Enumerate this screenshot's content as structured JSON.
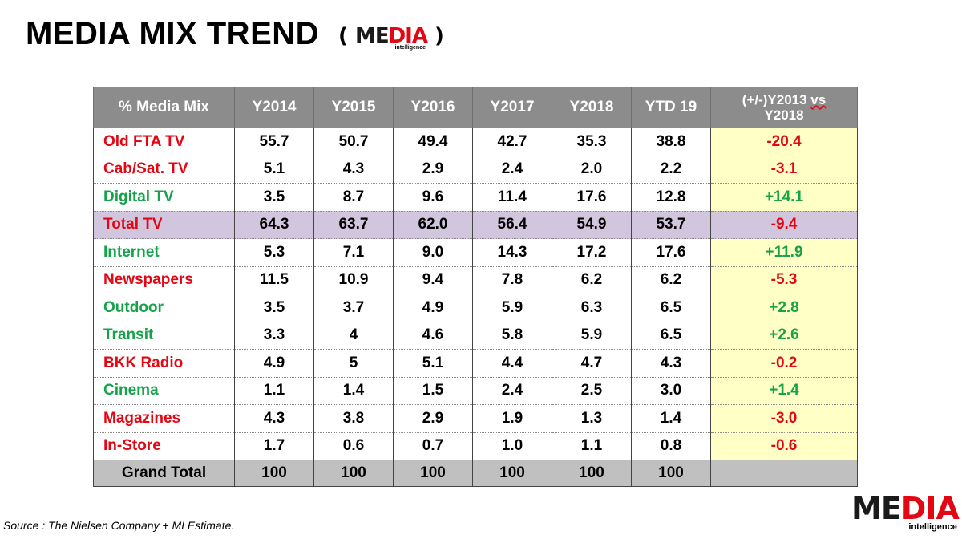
{
  "title": "MEDIA MIX TREND",
  "logo": {
    "open_paren": "(",
    "close_paren": ")",
    "word_part1": "ME",
    "word_part2": "DIA",
    "sub": "intelligence"
  },
  "table": {
    "headers": [
      "% Media Mix",
      "Y2014",
      "Y2015",
      "Y2016",
      "Y2017",
      "Y2018",
      "YTD 19"
    ],
    "change_header_line1": "(+/-)Y2013 ",
    "change_header_vs": "vs",
    "change_header_line2": "Y2018",
    "rows": [
      {
        "media": "Old FTA TV",
        "values": [
          "55.7",
          "50.7",
          "49.4",
          "42.7",
          "35.3",
          "38.8"
        ],
        "change": "-20.4"
      },
      {
        "media": "Cab/Sat. TV",
        "values": [
          "5.1",
          "4.3",
          "2.9",
          "2.4",
          "2.0",
          "2.2"
        ],
        "change": "-3.1"
      },
      {
        "media": "Digital TV",
        "values": [
          "3.5",
          "8.7",
          "9.6",
          "11.4",
          "17.6",
          "12.8"
        ],
        "change": "+14.1"
      },
      {
        "media": "Total TV",
        "values": [
          "64.3",
          "63.7",
          "62.0",
          "56.4",
          "54.9",
          "53.7"
        ],
        "change": "-9.4"
      },
      {
        "media": "Internet",
        "values": [
          "5.3",
          "7.1",
          "9.0",
          "14.3",
          "17.2",
          "17.6"
        ],
        "change": "+11.9"
      },
      {
        "media": "Newspapers",
        "values": [
          "11.5",
          "10.9",
          "9.4",
          "7.8",
          "6.2",
          "6.2"
        ],
        "change": "-5.3"
      },
      {
        "media": "Outdoor",
        "values": [
          "3.5",
          "3.7",
          "4.9",
          "5.9",
          "6.3",
          "6.5"
        ],
        "change": "+2.8"
      },
      {
        "media": "Transit",
        "values": [
          "3.3",
          "4",
          "4.6",
          "5.8",
          "5.9",
          "6.5"
        ],
        "change": "+2.6"
      },
      {
        "media": "BKK Radio",
        "values": [
          "4.9",
          "5",
          "5.1",
          "4.4",
          "4.7",
          "4.3"
        ],
        "change": "-0.2"
      },
      {
        "media": "Cinema",
        "values": [
          "1.1",
          "1.4",
          "1.5",
          "2.4",
          "2.5",
          "3.0"
        ],
        "change": "+1.4"
      },
      {
        "media": "Magazines",
        "values": [
          "4.3",
          "3.8",
          "2.9",
          "1.9",
          "1.3",
          "1.4"
        ],
        "change": "-3.0"
      },
      {
        "media": "In-Store",
        "values": [
          "1.7",
          "0.6",
          "0.7",
          "1.0",
          "1.1",
          "0.8"
        ],
        "change": "-0.6"
      }
    ],
    "total": {
      "label": "Grand Total",
      "values": [
        "100",
        "100",
        "100",
        "100",
        "100",
        "100"
      ]
    }
  },
  "source": "Source :  The Nielsen  Company + MI Estimate.",
  "colors": {
    "negative": "#e30613",
    "positive": "#15a34a",
    "header_bg": "#8c8c8c",
    "change_bg": "#ffffc6",
    "total_tv_bg": "#d1c6dd",
    "grand_total_bg": "#c0c0c0"
  }
}
